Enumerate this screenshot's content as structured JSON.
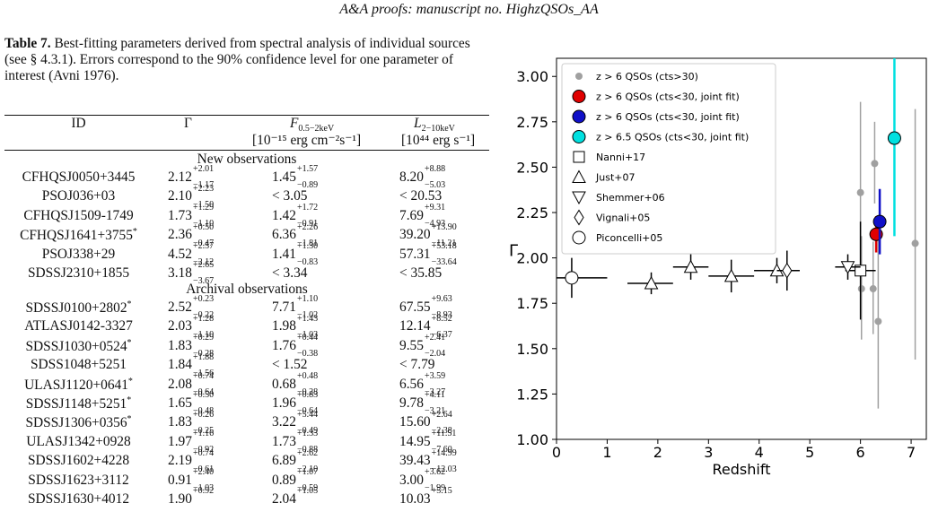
{
  "header": "A&A proofs: manuscript no. HighzQSOs_AA",
  "caption": {
    "label": "Table 7.",
    "text": " Best-fitting parameters derived from spectral analysis of individual sources (see § 4.3.1). Errors correspond to the 90% confidence level for one parameter of interest (Avni 1976)."
  },
  "table": {
    "headers": {
      "id": "ID",
      "gamma": "Γ",
      "flux_sym": "F",
      "flux_sub": "0.5−2keV",
      "flux_unit": "[10⁻¹⁵ erg cm⁻²s⁻¹]",
      "lum_sym": "L",
      "lum_sub": "2−10keV",
      "lum_unit": "[10⁴⁴ erg s⁻¹]"
    },
    "section_new": "New observations",
    "section_archival": "Archival observations",
    "rows_new": [
      {
        "id": "CFHQSJ0050+3445",
        "star": "",
        "g": {
          "v": "2.12",
          "u": "+2.01",
          "l": "−1.17"
        },
        "f": {
          "v": "1.45",
          "u": "+1.57",
          "l": "−0.89"
        },
        "lum": {
          "v": "8.20",
          "u": "+8.88",
          "l": "−5.03"
        }
      },
      {
        "id": "PSOJ036+03",
        "star": "",
        "g": {
          "v": "2.10",
          "u": "+2.23",
          "l": "−1.50"
        },
        "f": {
          "v": "< 3.05",
          "u": "",
          "l": ""
        },
        "lum": {
          "v": "< 20.53",
          "u": "",
          "l": ""
        }
      },
      {
        "id": "CFHQSJ1509-1749",
        "star": "",
        "g": {
          "v": "1.73",
          "u": "+1.29",
          "l": "−1.10"
        },
        "f": {
          "v": "1.42",
          "u": "+1.72",
          "l": "−0.91"
        },
        "lum": {
          "v": "7.69",
          "u": "+9.31",
          "l": "−4.93"
        }
      },
      {
        "id": "CFHQSJ1641+3755",
        "star": "*",
        "g": {
          "v": "2.36",
          "u": "+0.50",
          "l": "−0.47"
        },
        "f": {
          "v": "6.36",
          "u": "+2.26",
          "l": "−1.81"
        },
        "lum": {
          "v": "39.20",
          "u": "+13.90",
          "l": "−11.21"
        }
      },
      {
        "id": "PSOJ338+29",
        "star": "",
        "g": {
          "v": "4.52",
          "u": "+2.57",
          "l": "−2.12"
        },
        "f": {
          "v": "1.41",
          "u": "+1.30",
          "l": "−0.83"
        },
        "lum": {
          "v": "57.31",
          "u": "+53.18",
          "l": "−33.64"
        }
      },
      {
        "id": "SDSSJ2310+1855",
        "star": "",
        "g": {
          "v": "3.18",
          "u": "+2.65",
          "l": "−3.67"
        },
        "f": {
          "v": "< 3.34",
          "u": "",
          "l": ""
        },
        "lum": {
          "v": "< 35.85",
          "u": "",
          "l": ""
        }
      }
    ],
    "rows_archival": [
      {
        "id": "SDSSJ0100+2802",
        "star": "*",
        "g": {
          "v": "2.52",
          "u": "+0.23",
          "l": "−0.22"
        },
        "f": {
          "v": "7.71",
          "u": "+1.10",
          "l": "−1.02"
        },
        "lum": {
          "v": "67.55",
          "u": "+9.63",
          "l": "−8.93"
        }
      },
      {
        "id": "ATLASJ0142-3327",
        "star": "",
        "g": {
          "v": "2.03",
          "u": "+1.28",
          "l": "−1.10"
        },
        "f": {
          "v": "1.98",
          "u": "+1.43",
          "l": "−1.03"
        },
        "lum": {
          "v": "12.14",
          "u": "+8.52",
          "l": "−6.37"
        }
      },
      {
        "id": "SDSSJ1030+0524",
        "star": "*",
        "g": {
          "v": "1.83",
          "u": "+0.29",
          "l": "−0.28"
        },
        "f": {
          "v": "1.76",
          "u": "+0.44",
          "l": "−0.38"
        },
        "lum": {
          "v": "9.55",
          "u": "+2.41",
          "l": "−2.04"
        }
      },
      {
        "id": "SDSS1048+5251",
        "star": "",
        "g": {
          "v": "1.84",
          "u": "+1.88",
          "l": "−1.56"
        },
        "f": {
          "v": "< 1.52",
          "u": "",
          "l": ""
        },
        "lum": {
          "v": "< 7.79",
          "u": "",
          "l": ""
        }
      },
      {
        "id": "ULASJ1120+0641",
        "star": "*",
        "g": {
          "v": "2.08",
          "u": "+0.74",
          "l": "−0.64"
        },
        "f": {
          "v": "0.68",
          "u": "+0.48",
          "l": "−0.28"
        },
        "lum": {
          "v": "6.56",
          "u": "+3.59",
          "l": "−3.27"
        }
      },
      {
        "id": "SDSSJ1148+5251",
        "star": "*",
        "g": {
          "v": "1.65",
          "u": "+0.50",
          "l": "−0.48"
        },
        "f": {
          "v": "1.96",
          "u": "+0.83",
          "l": "−0.64"
        },
        "lum": {
          "v": "9.78",
          "u": "+4.11",
          "l": "−3.21"
        }
      },
      {
        "id": "SDSSJ1306+0356",
        "star": "*",
        "g": {
          "v": "1.83",
          "u": "+0.26",
          "l": "−0.25"
        },
        "f": {
          "v": "3.22",
          "u": "+5.44",
          "l": "−0.49"
        },
        "lum": {
          "v": "15.60",
          "u": "+2.64",
          "l": "−2.38"
        }
      },
      {
        "id": "ULASJ1342+0928",
        "star": "",
        "g": {
          "v": "1.97",
          "u": "+1.16",
          "l": "−0.92"
        },
        "f": {
          "v": "1.73",
          "u": "+1.33",
          "l": "−0.88"
        },
        "lum": {
          "v": "14.95",
          "u": "+11.51",
          "l": "−7.60"
        }
      },
      {
        "id": "SDSSJ1602+4228",
        "star": "",
        "g": {
          "v": "2.19",
          "u": "+0.74",
          "l": "−0.61"
        },
        "f": {
          "v": "6.89",
          "u": "+2.62",
          "l": "−2.10"
        },
        "lum": {
          "v": "39.43",
          "u": "+14.99",
          "l": "−12.03"
        }
      },
      {
        "id": "SDSSJ1623+3112",
        "star": "",
        "g": {
          "v": "0.91",
          "u": "+2.40",
          "l": "−1.03"
        },
        "f": {
          "v": "0.89",
          "u": "+1.07",
          "l": "−0.59"
        },
        "lum": {
          "v": "3.00",
          "u": "+3.62",
          "l": "−1.99"
        }
      },
      {
        "id": "SDSSJ1630+4012",
        "star": "",
        "g": {
          "v": "1.90",
          "u": "+0.92",
          "l": ""
        },
        "f": {
          "v": "2.04",
          "u": "+1.05",
          "l": ""
        },
        "lum": {
          "v": "10.03",
          "u": "+5.15",
          "l": ""
        }
      }
    ]
  },
  "chart_data": {
    "type": "scatter",
    "xlabel": "Redshift",
    "ylabel": "Γ",
    "xlim": [
      0,
      7.3
    ],
    "ylim": [
      1.0,
      3.1
    ],
    "xticks": [
      0,
      1,
      2,
      3,
      4,
      5,
      6,
      7
    ],
    "yticks": [
      1.0,
      1.25,
      1.5,
      1.75,
      2.0,
      2.25,
      2.5,
      2.75,
      3.0
    ],
    "ytick_labels": [
      "1.00",
      "1.25",
      "1.50",
      "1.75",
      "2.00",
      "2.25",
      "2.50",
      "2.75",
      "3.00"
    ],
    "legend_position": "top-left",
    "legend": [
      {
        "label": "z > 6 QSOs (cts>30)",
        "marker": "dot",
        "color": "#a0a0a0"
      },
      {
        "label": "z > 6 QSOs (cts<30, joint fit)",
        "marker": "circle-filled",
        "color": "#e00000"
      },
      {
        "label": "z > 6 QSOs (cts<30, joint fit)",
        "marker": "circle-filled",
        "color": "#1010c8"
      },
      {
        "label": "z > 6.5 QSOs (cts<30, joint fit)",
        "marker": "circle-filled",
        "color": "#00e0e0"
      },
      {
        "label": "Nanni+17",
        "marker": "square",
        "color": "#000000"
      },
      {
        "label": "Just+07",
        "marker": "triangle-up",
        "color": "#000000"
      },
      {
        "label": "Shemmer+06",
        "marker": "triangle-down",
        "color": "#000000"
      },
      {
        "label": "Vignali+05",
        "marker": "diamond",
        "color": "#000000"
      },
      {
        "label": "Piconcelli+05",
        "marker": "circle",
        "color": "#000000"
      }
    ],
    "series": [
      {
        "marker": "dot",
        "color": "#a0a0a0",
        "points": [
          {
            "x": 6.0,
            "y": 2.36,
            "ylo": 1.89,
            "yhi": 2.86
          },
          {
            "x": 6.02,
            "y": 1.83,
            "ylo": 1.55,
            "yhi": 2.12
          },
          {
            "x": 6.28,
            "y": 2.52,
            "ylo": 2.3,
            "yhi": 2.75
          },
          {
            "x": 6.25,
            "y": 1.83,
            "ylo": 1.58,
            "yhi": 2.09
          },
          {
            "x": 6.35,
            "y": 1.65,
            "ylo": 1.17,
            "yhi": 2.15
          },
          {
            "x": 7.08,
            "y": 2.08,
            "ylo": 1.44,
            "yhi": 2.82
          }
        ]
      },
      {
        "marker": "circle-filled",
        "color": "#e00000",
        "points": [
          {
            "x": 6.31,
            "y": 2.13,
            "ylo": 2.03,
            "yhi": 2.23
          }
        ]
      },
      {
        "marker": "circle-filled",
        "color": "#1010c8",
        "points": [
          {
            "x": 6.38,
            "y": 2.2,
            "ylo": 2.02,
            "yhi": 2.38
          }
        ]
      },
      {
        "marker": "circle-filled",
        "color": "#00e0e0",
        "points": [
          {
            "x": 6.67,
            "y": 2.66,
            "ylo": 2.12,
            "yhi": 3.2
          }
        ]
      },
      {
        "marker": "square",
        "color": "#000000",
        "points": [
          {
            "x": 6.0,
            "y": 1.93,
            "xlo": 5.7,
            "xhi": 6.3,
            "ylo": 1.66,
            "yhi": 2.2
          }
        ]
      },
      {
        "marker": "triangle-up",
        "color": "#000000",
        "points": [
          {
            "x": 1.87,
            "y": 1.86,
            "xlo": 1.4,
            "xhi": 2.3,
            "ylo": 1.8,
            "yhi": 1.92
          },
          {
            "x": 2.65,
            "y": 1.95,
            "xlo": 2.3,
            "xhi": 3.0,
            "ylo": 1.88,
            "yhi": 2.02
          },
          {
            "x": 3.45,
            "y": 1.9,
            "xlo": 3.0,
            "xhi": 3.9,
            "ylo": 1.81,
            "yhi": 1.99
          },
          {
            "x": 4.35,
            "y": 1.93,
            "xlo": 3.9,
            "xhi": 4.8,
            "ylo": 1.86,
            "yhi": 2.0
          }
        ]
      },
      {
        "marker": "triangle-down",
        "color": "#000000",
        "points": [
          {
            "x": 5.75,
            "y": 1.95,
            "xlo": 5.5,
            "xhi": 6.0,
            "ylo": 1.88,
            "yhi": 2.02
          }
        ]
      },
      {
        "marker": "diamond",
        "color": "#000000",
        "points": [
          {
            "x": 4.55,
            "y": 1.93,
            "xlo": 4.35,
            "xhi": 4.8,
            "ylo": 1.82,
            "yhi": 2.04
          }
        ]
      },
      {
        "marker": "circle",
        "color": "#000000",
        "points": [
          {
            "x": 0.3,
            "y": 1.89,
            "xlo": 0.0,
            "xhi": 1.0,
            "ylo": 1.78,
            "yhi": 2.0
          }
        ]
      }
    ]
  }
}
